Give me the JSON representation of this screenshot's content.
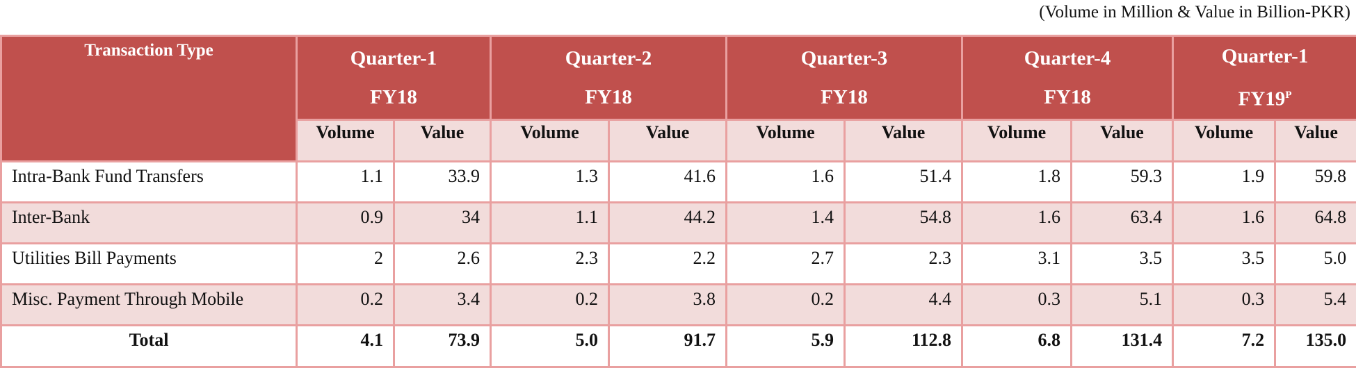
{
  "note": "(Volume in Million & Value in Billion-PKR)",
  "header": {
    "type_label": "Transaction Type",
    "quarters": [
      {
        "q": "Quarter-1",
        "fy": "FY18"
      },
      {
        "q": "Quarter-2",
        "fy": "FY18"
      },
      {
        "q": "Quarter-3",
        "fy": "FY18"
      },
      {
        "q": "Quarter-4",
        "fy": "FY18"
      },
      {
        "q": "Quarter-1",
        "fy": "FY19",
        "fy_sup": "P"
      }
    ],
    "volume_label": "Volume",
    "value_label": "Value"
  },
  "rows": [
    {
      "label": "Intra-Bank Fund Transfers",
      "cells": [
        "1.1",
        "33.9",
        "1.3",
        "41.6",
        "1.6",
        "51.4",
        "1.8",
        "59.3",
        "1.9",
        "59.8"
      ]
    },
    {
      "label": "Inter-Bank",
      "cells": [
        "0.9",
        "34",
        "1.1",
        "44.2",
        "1.4",
        "54.8",
        "1.6",
        "63.4",
        "1.6",
        "64.8"
      ]
    },
    {
      "label": "Utilities Bill Payments",
      "cells": [
        "2",
        "2.6",
        "2.3",
        "2.2",
        "2.7",
        "2.3",
        "3.1",
        "3.5",
        "3.5",
        "5.0"
      ]
    },
    {
      "label": "Misc. Payment Through Mobile",
      "cells": [
        "0.2",
        "3.4",
        "0.2",
        "3.8",
        "0.2",
        "4.4",
        "0.3",
        "5.1",
        "0.3",
        "5.4"
      ]
    }
  ],
  "total": {
    "label": "Total",
    "cells": [
      "4.1",
      "73.9",
      "5.0",
      "91.7",
      "5.9",
      "112.8",
      "6.8",
      "131.4",
      "7.2",
      "135.0"
    ]
  },
  "colors": {
    "header_bg": "#c0504d",
    "band_bg": "#f2dcdb",
    "border": "#e9a0a0"
  }
}
